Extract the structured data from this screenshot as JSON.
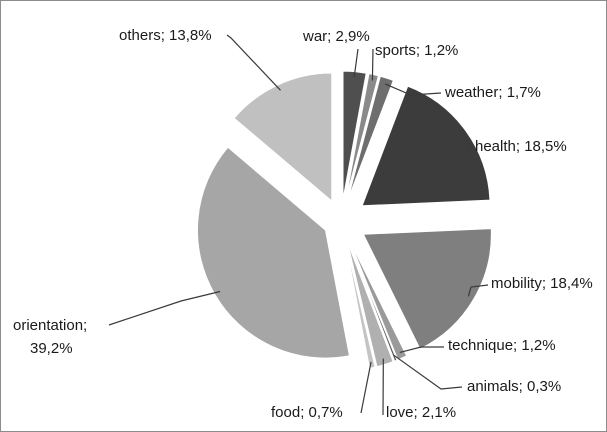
{
  "chart_data": {
    "type": "pie",
    "title": "",
    "categories": [
      "war",
      "sports",
      "weather",
      "health",
      "mobility",
      "technique",
      "animals",
      "love",
      "food",
      "orientation",
      "others"
    ],
    "values": [
      2.9,
      1.2,
      1.7,
      18.5,
      18.4,
      1.2,
      0.3,
      2.1,
      0.7,
      39.2,
      13.8
    ],
    "labels": [
      "war; 2,9%",
      "sports; 1,2%",
      "weather; 1,7%",
      "health; 18,5%",
      "mobility; 18,4%",
      "technique; 1,2%",
      "animals; 0,3%",
      "love; 2,1%",
      "food; 0,7%",
      "orientation;",
      "others; 13,8%"
    ],
    "orientation_value_line": "39,2%",
    "exploded": true,
    "legend": "none",
    "colors": [
      "#4f4f4f",
      "#8a8a8a",
      "#6e6e6e",
      "#3c3c3c",
      "#7f7f7f",
      "#9a9a9a",
      "#5a5a5a",
      "#b0b0b0",
      "#c4c4c4",
      "#a6a6a6",
      "#c0c0c0"
    ]
  }
}
